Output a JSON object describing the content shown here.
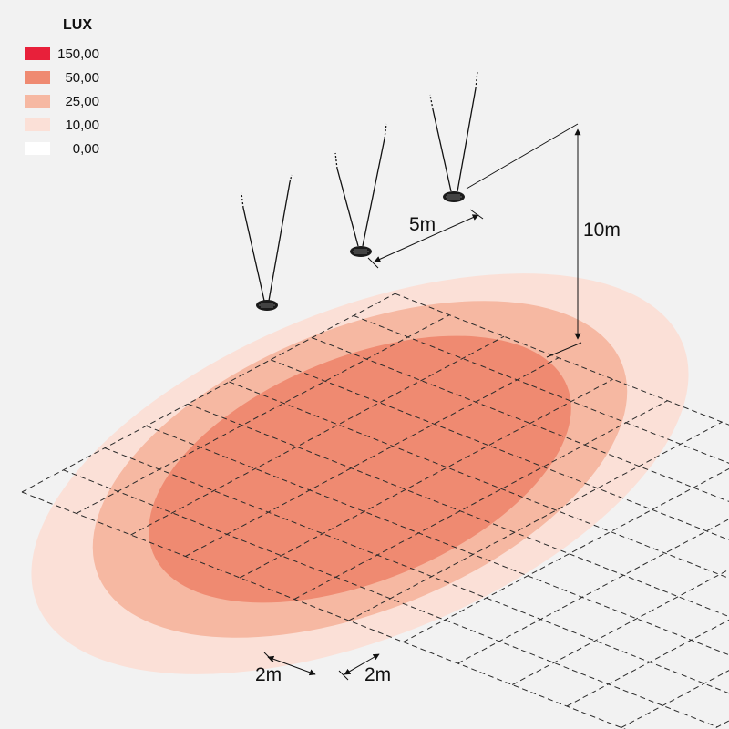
{
  "legend": {
    "title": "LUX",
    "items": [
      {
        "value": "150,00",
        "color": "#e8203a"
      },
      {
        "value": "50,00",
        "color": "#ef8a71"
      },
      {
        "value": "25,00",
        "color": "#f6b8a2"
      },
      {
        "value": "10,00",
        "color": "#fbe0d7"
      },
      {
        "value": "0,00",
        "color": "#ffffff"
      }
    ]
  },
  "dimensions": {
    "height": "10m",
    "spacing": "5m",
    "grid_x": "2m",
    "grid_y": "2m"
  },
  "colors": {
    "background": "#f2f2f2",
    "zone_outer": "#fbe0d7",
    "zone_mid": "#f6b8a2",
    "zone_inner": "#ef8a71",
    "line": "#1a1a1a"
  }
}
